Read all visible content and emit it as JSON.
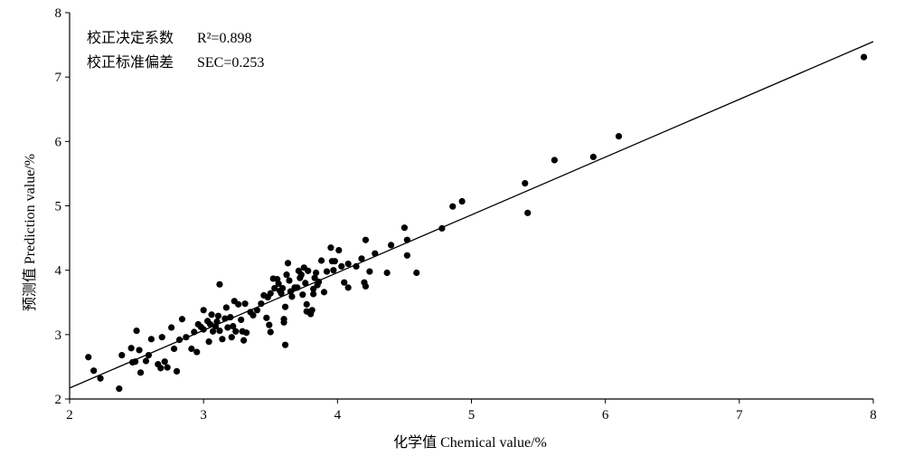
{
  "chart_data": {
    "type": "scatter",
    "xlabel": "化学值 Chemical value/%",
    "ylabel": "预测值 Prediction value/%",
    "xlim": [
      2,
      8
    ],
    "ylim": [
      2,
      8
    ],
    "xticks": [
      "2",
      "3",
      "4",
      "5",
      "6",
      "7",
      "8"
    ],
    "yticks": [
      "2",
      "3",
      "4",
      "5",
      "6",
      "7",
      "8"
    ],
    "grid": false,
    "annotations": [
      {
        "label": "校正决定系数",
        "value": "R²=0.898"
      },
      {
        "label": "校正标准偏差",
        "value": "SEC=0.253"
      }
    ],
    "fit_line": {
      "x": [
        2,
        8
      ],
      "y": [
        2.17,
        7.55
      ]
    },
    "points": [
      [
        2.14,
        2.65
      ],
      [
        2.18,
        2.44
      ],
      [
        2.23,
        2.32
      ],
      [
        2.37,
        2.16
      ],
      [
        2.39,
        2.68
      ],
      [
        2.46,
        2.79
      ],
      [
        2.47,
        2.57
      ],
      [
        2.49,
        2.58
      ],
      [
        2.5,
        3.06
      ],
      [
        2.52,
        2.76
      ],
      [
        2.53,
        2.41
      ],
      [
        2.57,
        2.59
      ],
      [
        2.59,
        2.68
      ],
      [
        2.61,
        2.93
      ],
      [
        2.66,
        2.54
      ],
      [
        2.68,
        2.48
      ],
      [
        2.69,
        2.96
      ],
      [
        2.71,
        2.58
      ],
      [
        2.73,
        2.49
      ],
      [
        2.76,
        3.11
      ],
      [
        2.78,
        2.78
      ],
      [
        2.8,
        2.43
      ],
      [
        2.82,
        2.92
      ],
      [
        2.84,
        3.24
      ],
      [
        2.87,
        2.96
      ],
      [
        2.91,
        2.78
      ],
      [
        2.93,
        3.04
      ],
      [
        2.95,
        2.73
      ],
      [
        2.96,
        3.16
      ],
      [
        2.98,
        3.12
      ],
      [
        3.0,
        3.08
      ],
      [
        3.0,
        3.38
      ],
      [
        3.03,
        3.21
      ],
      [
        3.04,
        2.89
      ],
      [
        3.05,
        3.16
      ],
      [
        3.06,
        3.31
      ],
      [
        3.07,
        3.05
      ],
      [
        3.09,
        3.13
      ],
      [
        3.1,
        3.2
      ],
      [
        3.11,
        3.29
      ],
      [
        3.12,
        3.78
      ],
      [
        3.12,
        3.06
      ],
      [
        3.14,
        2.93
      ],
      [
        3.16,
        3.25
      ],
      [
        3.17,
        3.42
      ],
      [
        3.18,
        3.11
      ],
      [
        3.2,
        3.27
      ],
      [
        3.21,
        2.96
      ],
      [
        3.22,
        3.13
      ],
      [
        3.23,
        3.52
      ],
      [
        3.24,
        3.05
      ],
      [
        3.26,
        3.47
      ],
      [
        3.28,
        3.23
      ],
      [
        3.29,
        3.05
      ],
      [
        3.3,
        2.91
      ],
      [
        3.31,
        3.48
      ],
      [
        3.32,
        3.03
      ],
      [
        3.35,
        3.35
      ],
      [
        3.37,
        3.3
      ],
      [
        3.4,
        3.38
      ],
      [
        3.43,
        3.48
      ],
      [
        3.45,
        3.61
      ],
      [
        3.47,
        3.26
      ],
      [
        3.48,
        3.58
      ],
      [
        3.49,
        3.15
      ],
      [
        3.5,
        3.04
      ],
      [
        3.5,
        3.64
      ],
      [
        3.52,
        3.87
      ],
      [
        3.53,
        3.72
      ],
      [
        3.55,
        3.86
      ],
      [
        3.56,
        3.79
      ],
      [
        3.57,
        3.68
      ],
      [
        3.58,
        3.64
      ],
      [
        3.59,
        3.72
      ],
      [
        3.6,
        3.24
      ],
      [
        3.6,
        3.19
      ],
      [
        3.61,
        3.43
      ],
      [
        3.61,
        2.84
      ],
      [
        3.62,
        3.93
      ],
      [
        3.63,
        4.11
      ],
      [
        3.64,
        3.84
      ],
      [
        3.65,
        3.67
      ],
      [
        3.66,
        3.59
      ],
      [
        3.68,
        3.73
      ],
      [
        3.7,
        3.73
      ],
      [
        3.71,
        3.99
      ],
      [
        3.72,
        3.88
      ],
      [
        3.73,
        3.93
      ],
      [
        3.74,
        3.62
      ],
      [
        3.75,
        4.04
      ],
      [
        3.76,
        3.8
      ],
      [
        3.77,
        3.47
      ],
      [
        3.77,
        3.36
      ],
      [
        3.78,
        3.99
      ],
      [
        3.8,
        3.32
      ],
      [
        3.81,
        3.38
      ],
      [
        3.82,
        3.71
      ],
      [
        3.82,
        3.63
      ],
      [
        3.83,
        3.88
      ],
      [
        3.84,
        3.96
      ],
      [
        3.85,
        3.77
      ],
      [
        3.86,
        3.82
      ],
      [
        3.88,
        4.15
      ],
      [
        3.9,
        3.66
      ],
      [
        3.92,
        3.98
      ],
      [
        3.95,
        4.35
      ],
      [
        3.96,
        4.14
      ],
      [
        3.97,
        4.0
      ],
      [
        3.98,
        4.14
      ],
      [
        4.01,
        4.31
      ],
      [
        4.03,
        4.06
      ],
      [
        4.05,
        3.81
      ],
      [
        4.08,
        4.1
      ],
      [
        4.08,
        3.73
      ],
      [
        4.14,
        4.06
      ],
      [
        4.18,
        4.18
      ],
      [
        4.2,
        3.81
      ],
      [
        4.21,
        4.47
      ],
      [
        4.21,
        3.75
      ],
      [
        4.24,
        3.98
      ],
      [
        4.28,
        4.26
      ],
      [
        4.37,
        3.96
      ],
      [
        4.4,
        4.39
      ],
      [
        4.5,
        4.66
      ],
      [
        4.52,
        4.47
      ],
      [
        4.52,
        4.23
      ],
      [
        4.59,
        3.96
      ],
      [
        4.78,
        4.65
      ],
      [
        4.86,
        4.99
      ],
      [
        4.93,
        5.07
      ],
      [
        5.4,
        5.35
      ],
      [
        5.42,
        4.89
      ],
      [
        5.62,
        5.71
      ],
      [
        5.91,
        5.76
      ],
      [
        6.1,
        6.08
      ],
      [
        7.93,
        7.31
      ]
    ]
  }
}
